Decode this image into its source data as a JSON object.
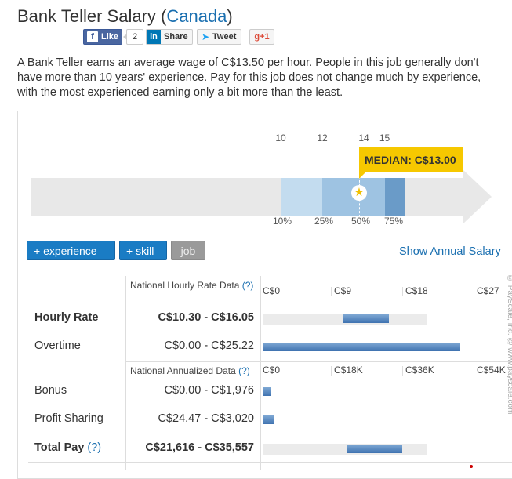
{
  "title": {
    "prefix": "Bank Teller Salary (",
    "country": "Canada",
    "suffix": ")"
  },
  "share": {
    "like": "Like",
    "like_count": "2",
    "linkedin_icon": "in",
    "linkedin": "Share",
    "tweet": "Tweet",
    "gplus": "g+1"
  },
  "description": "A Bank Teller earns an average wage of C$13.50 per hour. People in this job generally don't have more than 10 years' experience. Pay for this job does not change much by experience, with the most experienced earning only a bit more than the least.",
  "percentile_chart": {
    "ticks": [
      "10",
      "12",
      "14",
      "15"
    ],
    "percentiles": [
      "10%",
      "25%",
      "50%",
      "75%"
    ],
    "median_label": "MEDIAN: C$13.00",
    "bands": [
      {
        "from": 10,
        "to": 12,
        "color": "#c3dcef"
      },
      {
        "from": 12,
        "to": 15,
        "color": "#9ec3e2"
      },
      {
        "from": 15,
        "to": 16,
        "color": "#6a9bc8"
      }
    ]
  },
  "tabs": {
    "experience": "+ experience",
    "skill": "+ skill",
    "job": "job"
  },
  "annual_link": "Show Annual Salary",
  "table": {
    "hourly_header": "National Hourly Rate Data",
    "hourly_q": "(?)",
    "hourly_scale": [
      "C$0",
      "C$9",
      "C$18",
      "C$27"
    ],
    "hourly_max": 27,
    "annual_header": "National Annualized Data",
    "annual_q": "(?)",
    "annual_scale": [
      "C$0",
      "C$18K",
      "C$36K",
      "C$54K"
    ],
    "annual_max": 54000,
    "hourly_rows": [
      {
        "label": "Hourly Rate",
        "range": "C$10.30 - C$16.05",
        "low": 10.3,
        "high": 16.05
      },
      {
        "label": "Overtime",
        "range": "C$0.00 - C$25.22",
        "low": 0,
        "high": 25.22
      }
    ],
    "annual_rows": [
      {
        "label": "Bonus",
        "range": "C$0.00 - C$1,976",
        "low": 0,
        "high": 1976
      },
      {
        "label": "Profit Sharing",
        "range": "C$24.47 - C$3,020",
        "low": 24.47,
        "high": 3020
      },
      {
        "label": "Total Pay",
        "q": "(?)",
        "range": "C$21,616 - C$35,557",
        "low": 21616,
        "high": 35557
      }
    ]
  },
  "copyright": "© PayScale, Inc. @ www.payscale.com",
  "colors": {
    "link": "#1a6fb0",
    "median": "#f6c800",
    "button": "#1a7cc4"
  }
}
